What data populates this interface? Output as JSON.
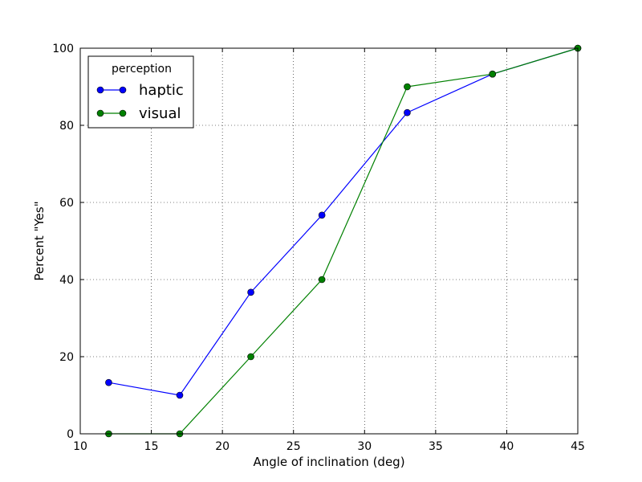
{
  "chart_data": {
    "type": "line",
    "title": "",
    "xlabel": "Angle of inclination (deg)",
    "ylabel": "Percent \"Yes\"",
    "xlim": [
      10,
      45
    ],
    "ylim": [
      0,
      100
    ],
    "xticks": [
      10,
      15,
      20,
      25,
      30,
      35,
      40,
      45
    ],
    "yticks": [
      0,
      20,
      40,
      60,
      80,
      100
    ],
    "grid": true,
    "legend": {
      "title": "perception",
      "placement": "upper-left"
    },
    "x": [
      12,
      17,
      22,
      27,
      33,
      39,
      45
    ],
    "series": [
      {
        "name": "haptic",
        "color": "#0000ff",
        "values": [
          13.3,
          10,
          36.7,
          56.7,
          83.3,
          93.3,
          100
        ]
      },
      {
        "name": "visual",
        "color": "#008000",
        "values": [
          0,
          0,
          20,
          40,
          90,
          93.3,
          100
        ]
      }
    ]
  }
}
